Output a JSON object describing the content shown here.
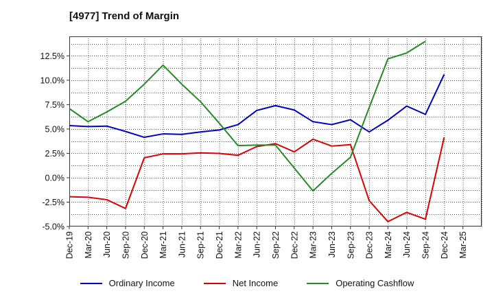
{
  "chart_data": {
    "type": "line",
    "title": "[4977]  Trend of Margin",
    "xlabel": "",
    "ylabel": "",
    "ylim": [
      -5.0,
      14.5
    ],
    "yticks": [
      -5.0,
      -2.5,
      0.0,
      2.5,
      5.0,
      7.5,
      10.0,
      12.5
    ],
    "ytick_labels": [
      "-5.0%",
      "-2.5%",
      "0.0%",
      "2.5%",
      "5.0%",
      "7.5%",
      "10.0%",
      "12.5%"
    ],
    "categories": [
      "Dec-19",
      "Mar-20",
      "Jun-20",
      "Sep-20",
      "Dec-20",
      "Mar-21",
      "Jun-21",
      "Sep-21",
      "Dec-21",
      "Mar-22",
      "Jun-22",
      "Sep-22",
      "Dec-22",
      "Mar-23",
      "Jun-23",
      "Sep-23",
      "Dec-23",
      "Mar-24",
      "Jun-24",
      "Sep-24",
      "Dec-24",
      "Mar-25"
    ],
    "grid": true,
    "legend_position": "bottom",
    "series": [
      {
        "name": "Ordinary Income",
        "color": "#0000cc",
        "values": [
          5.35,
          5.25,
          5.3,
          4.75,
          4.15,
          4.5,
          4.45,
          4.7,
          4.9,
          5.45,
          6.9,
          7.4,
          6.95,
          5.75,
          5.45,
          5.95,
          4.7,
          5.9,
          7.35,
          6.5,
          10.6,
          null
        ]
      },
      {
        "name": "Net Income",
        "color": "#dd0000",
        "values": [
          -1.95,
          -2.0,
          -2.25,
          -3.15,
          2.05,
          2.45,
          2.45,
          2.55,
          2.5,
          2.3,
          3.2,
          3.5,
          2.65,
          3.95,
          3.25,
          3.4,
          -2.35,
          -4.5,
          -3.55,
          -4.25,
          4.15,
          null
        ]
      },
      {
        "name": "Operating Cashflow",
        "color": "#228b22",
        "values": [
          7.1,
          5.75,
          6.75,
          7.85,
          9.6,
          11.55,
          9.6,
          7.8,
          5.6,
          3.3,
          3.35,
          3.35,
          1.0,
          -1.35,
          0.45,
          2.1,
          7.2,
          12.2,
          12.8,
          14.0,
          null,
          null
        ]
      }
    ]
  }
}
